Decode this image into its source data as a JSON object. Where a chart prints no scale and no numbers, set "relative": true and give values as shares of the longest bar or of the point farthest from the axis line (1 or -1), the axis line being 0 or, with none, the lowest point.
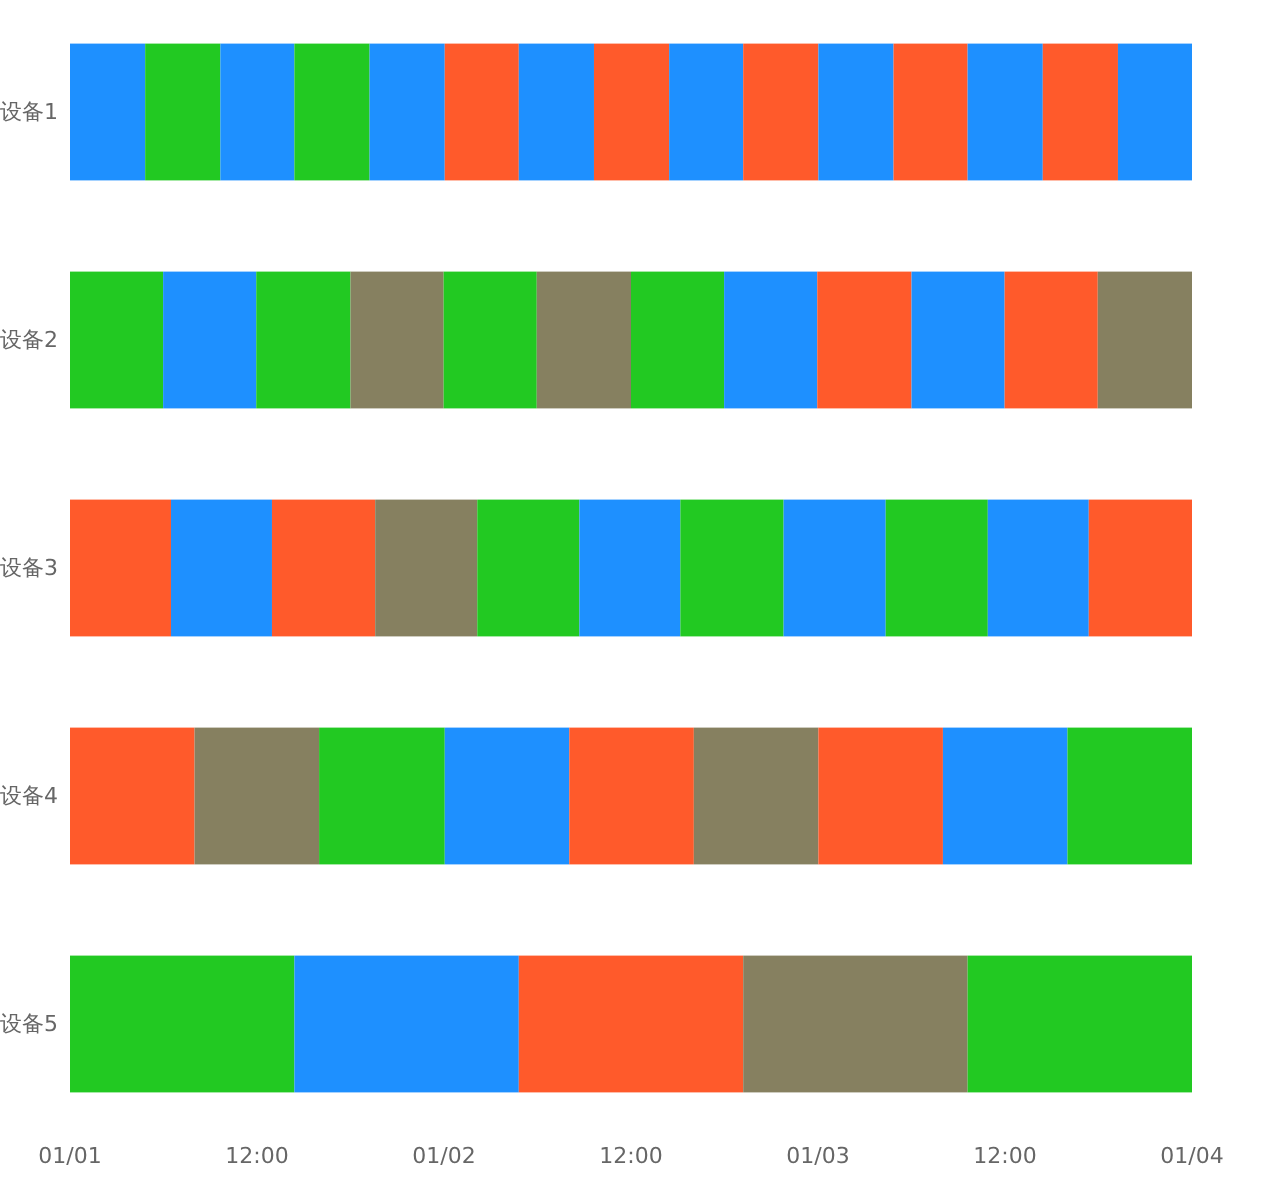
{
  "chart_data": {
    "type": "bar",
    "orientation": "horizontal",
    "stacked": true,
    "relative": true,
    "categories": [
      "设备1",
      "设备2",
      "设备3",
      "设备4",
      "设备5"
    ],
    "annotations": [
      "01/01",
      "12:00",
      "01/02",
      "12:00",
      "01/03",
      "12:00",
      "01/04"
    ],
    "series": [
      {
        "values": [
          0.067,
          0.083,
          0.09,
          0.111,
          0.2
        ],
        "colors": [
          "#1e90ff",
          "#22c922",
          "#ff5a2b",
          "#ff5a2b",
          "#22c922"
        ]
      },
      {
        "values": [
          0.067,
          0.083,
          0.09,
          0.111,
          0.2
        ],
        "colors": [
          "#22c922",
          "#1e90ff",
          "#1e90ff",
          "#868060",
          "#1e90ff"
        ]
      },
      {
        "values": [
          0.066,
          0.084,
          0.092,
          0.112,
          0.2
        ],
        "colors": [
          "#1e90ff",
          "#22c922",
          "#ff5a2b",
          "#22c922",
          "#ff5a2b"
        ]
      },
      {
        "values": [
          0.067,
          0.083,
          0.091,
          0.111,
          0.2
        ],
        "colors": [
          "#22c922",
          "#868060",
          "#868060",
          "#1e90ff",
          "#868060"
        ]
      },
      {
        "values": [
          0.067,
          0.083,
          0.091,
          0.111,
          0.2
        ],
        "colors": [
          "#1e90ff",
          "#22c922",
          "#22c922",
          "#ff5a2b",
          "#22c922"
        ]
      },
      {
        "values": [
          0.066,
          0.084,
          0.09,
          0.111,
          null
        ],
        "colors": [
          "#ff5a2b",
          "#868060",
          "#1e90ff",
          "#868060",
          null
        ]
      },
      {
        "values": [
          0.067,
          0.083,
          0.092,
          0.111,
          null
        ],
        "colors": [
          "#1e90ff",
          "#22c922",
          "#22c922",
          "#ff5a2b",
          null
        ]
      },
      {
        "values": [
          0.067,
          0.083,
          0.091,
          0.111,
          null
        ],
        "colors": [
          "#ff5a2b",
          "#1e90ff",
          "#1e90ff",
          "#1e90ff",
          null
        ]
      },
      {
        "values": [
          0.066,
          0.084,
          0.091,
          0.111,
          null
        ],
        "colors": [
          "#1e90ff",
          "#ff5a2b",
          "#22c922",
          "#22c922",
          null
        ]
      },
      {
        "values": [
          0.067,
          0.083,
          0.09,
          null,
          null
        ],
        "colors": [
          "#ff5a2b",
          "#1e90ff",
          "#1e90ff",
          null,
          null
        ]
      },
      {
        "values": [
          0.067,
          0.083,
          0.092,
          null,
          null
        ],
        "colors": [
          "#1e90ff",
          "#ff5a2b",
          "#ff5a2b",
          null,
          null
        ]
      },
      {
        "values": [
          0.066,
          0.084,
          null,
          null,
          null
        ],
        "colors": [
          "#ff5a2b",
          "#868060",
          null,
          null,
          null
        ]
      },
      {
        "values": [
          0.067,
          null,
          null,
          null,
          null
        ],
        "colors": [
          "#1e90ff",
          null,
          null,
          null,
          null
        ]
      },
      {
        "values": [
          0.067,
          null,
          null,
          null,
          null
        ],
        "colors": [
          "#ff5a2b",
          null,
          null,
          null,
          null
        ]
      },
      {
        "values": [
          0.066,
          null,
          null,
          null,
          null
        ],
        "colors": [
          "#1e90ff",
          null,
          null,
          null,
          null
        ]
      }
    ]
  }
}
